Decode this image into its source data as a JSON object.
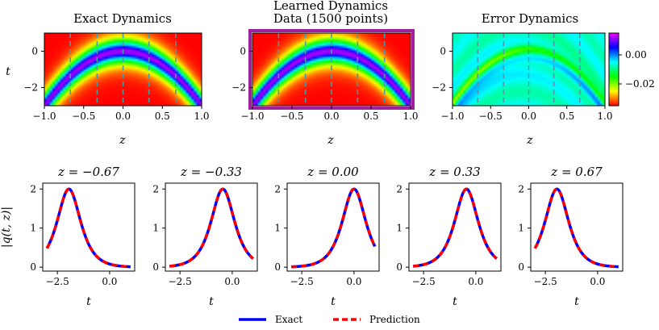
{
  "colors": {
    "exact": "#0000ff",
    "prediction": "#ff0000",
    "frame_highlight": "#a020a0",
    "slice_line": "#4a9aa8"
  },
  "top_row": {
    "panels": [
      {
        "title": "Exact Dynamics",
        "kind": "field"
      },
      {
        "title_line1": "Learned Dynamics",
        "title_line2": "Data (1500 points)",
        "kind": "field",
        "highlighted": true
      },
      {
        "title": "Error Dynamics",
        "kind": "error"
      }
    ],
    "xlabel": "z",
    "ylabel": "t",
    "xticks": [
      "−1.0",
      "−0.5",
      "0.0",
      "0.5",
      "1.0"
    ],
    "xtick_values": [
      -1.0,
      -0.5,
      0.0,
      0.5,
      1.0
    ],
    "yticks": [
      "0",
      "−2"
    ],
    "ytick_values": [
      0,
      -2
    ],
    "xlim": [
      -1.0,
      1.0
    ],
    "ylim": [
      -3.0,
      1.0
    ],
    "slice_z": [
      -0.67,
      -0.33,
      0.0,
      0.33,
      0.67
    ],
    "colorbar": {
      "ticks": [
        "0.00",
        "−0.02"
      ],
      "tick_values": [
        0.0,
        -0.02
      ],
      "range": [
        -0.035,
        0.015
      ],
      "colormap": "hsv"
    }
  },
  "chart_data": {
    "type": "line",
    "description_free": true,
    "xlabel": "t",
    "ylabel": "|q(t, z)|",
    "xlim": [
      -3.2,
      1.2
    ],
    "ylim": [
      -0.1,
      2.15
    ],
    "xticks": [
      "−2.5",
      "0.0"
    ],
    "xtick_values": [
      -2.5,
      0.0
    ],
    "yticks": [
      "0",
      "1",
      "2"
    ],
    "ytick_values": [
      0,
      1,
      2
    ],
    "subplots": [
      {
        "title": "z = −0.67",
        "peak_t": -1.95,
        "peak": 2.0
      },
      {
        "title": "z = −0.33",
        "peak_t": -0.45,
        "peak": 2.0
      },
      {
        "title": "z = 0.00",
        "peak_t": 0.0,
        "peak": 2.0
      },
      {
        "title": "z = 0.33",
        "peak_t": -0.45,
        "peak": 2.0
      },
      {
        "title": "z = 0.67",
        "peak_t": -1.95,
        "peak": 2.0
      }
    ],
    "series": [
      {
        "name": "Exact",
        "style": "solid"
      },
      {
        "name": "Prediction",
        "style": "dashed"
      }
    ]
  },
  "legend": {
    "exact_label": "Exact",
    "prediction_label": "Prediction"
  }
}
